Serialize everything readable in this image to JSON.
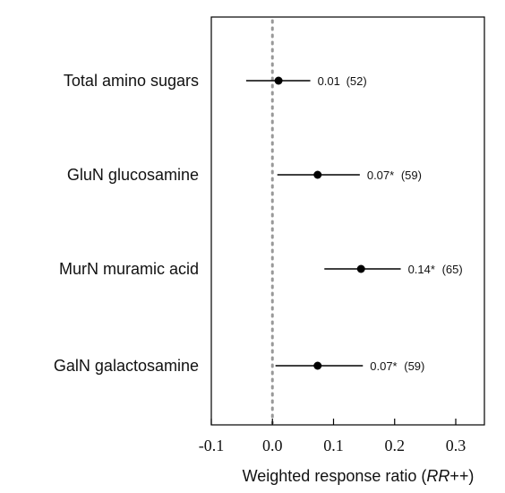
{
  "chart_data": {
    "type": "forest",
    "categories": [
      "Total amino sugars",
      "GluN glucosamine",
      "MurN muramic acid",
      "GalN galactosamine"
    ],
    "series": [
      {
        "values": [
          0.01,
          0.074,
          0.145,
          0.074
        ],
        "ci_lower": [
          -0.043,
          0.008,
          0.085,
          0.005
        ],
        "ci_upper": [
          0.062,
          0.143,
          0.21,
          0.148
        ],
        "value_labels": [
          "0.01",
          "0.07*",
          "0.14*",
          "0.07*"
        ],
        "n_labels": [
          "(52)",
          "(59)",
          "(65)",
          "(59)"
        ]
      }
    ],
    "xlim": [
      -0.1,
      0.35
    ],
    "xticks": [
      -0.1,
      0.0,
      0.1,
      0.2,
      0.3
    ],
    "xtick_labels": [
      "-0.1",
      "0.0",
      "0.1",
      "0.2",
      "0.3"
    ],
    "reference_line": 0,
    "xlabel_prefix": "Weighted response ratio (",
    "xlabel_italic": "RR",
    "xlabel_suffix": "++)",
    "colors": {
      "point": "#000000",
      "reference": "#999999",
      "axis": "#000000"
    }
  }
}
